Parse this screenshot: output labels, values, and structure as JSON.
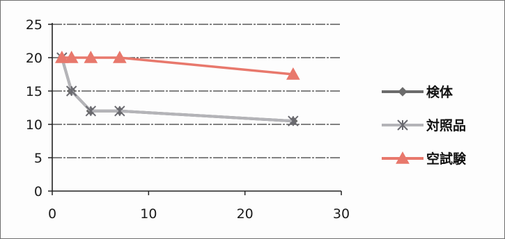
{
  "chart_data": {
    "type": "line",
    "title": "",
    "xlabel": "",
    "ylabel": "",
    "xlim": [
      0,
      30
    ],
    "ylim": [
      0,
      25
    ],
    "x_ticks": [
      "0",
      "10",
      "20",
      "30"
    ],
    "y_ticks": [
      "0",
      "5",
      "10",
      "15",
      "20",
      "25"
    ],
    "grid": "horizontal",
    "legend_position": "right",
    "series": [
      {
        "name": "検体",
        "marker": "diamond",
        "color": "#6b6b6b",
        "x": [
          1,
          2,
          4,
          7,
          25
        ],
        "y": [
          20,
          15,
          12,
          12,
          10.5
        ]
      },
      {
        "name": "対照品",
        "marker": "asterisk",
        "color": "#b4b4b8",
        "x": [
          1,
          2,
          4,
          7,
          25
        ],
        "y": [
          20,
          15,
          12,
          12,
          10.5
        ]
      },
      {
        "name": "空試験",
        "marker": "triangle",
        "color": "#e8786c",
        "x": [
          1,
          2,
          4,
          7,
          25
        ],
        "y": [
          20,
          20,
          20,
          20,
          17.5
        ]
      }
    ]
  }
}
